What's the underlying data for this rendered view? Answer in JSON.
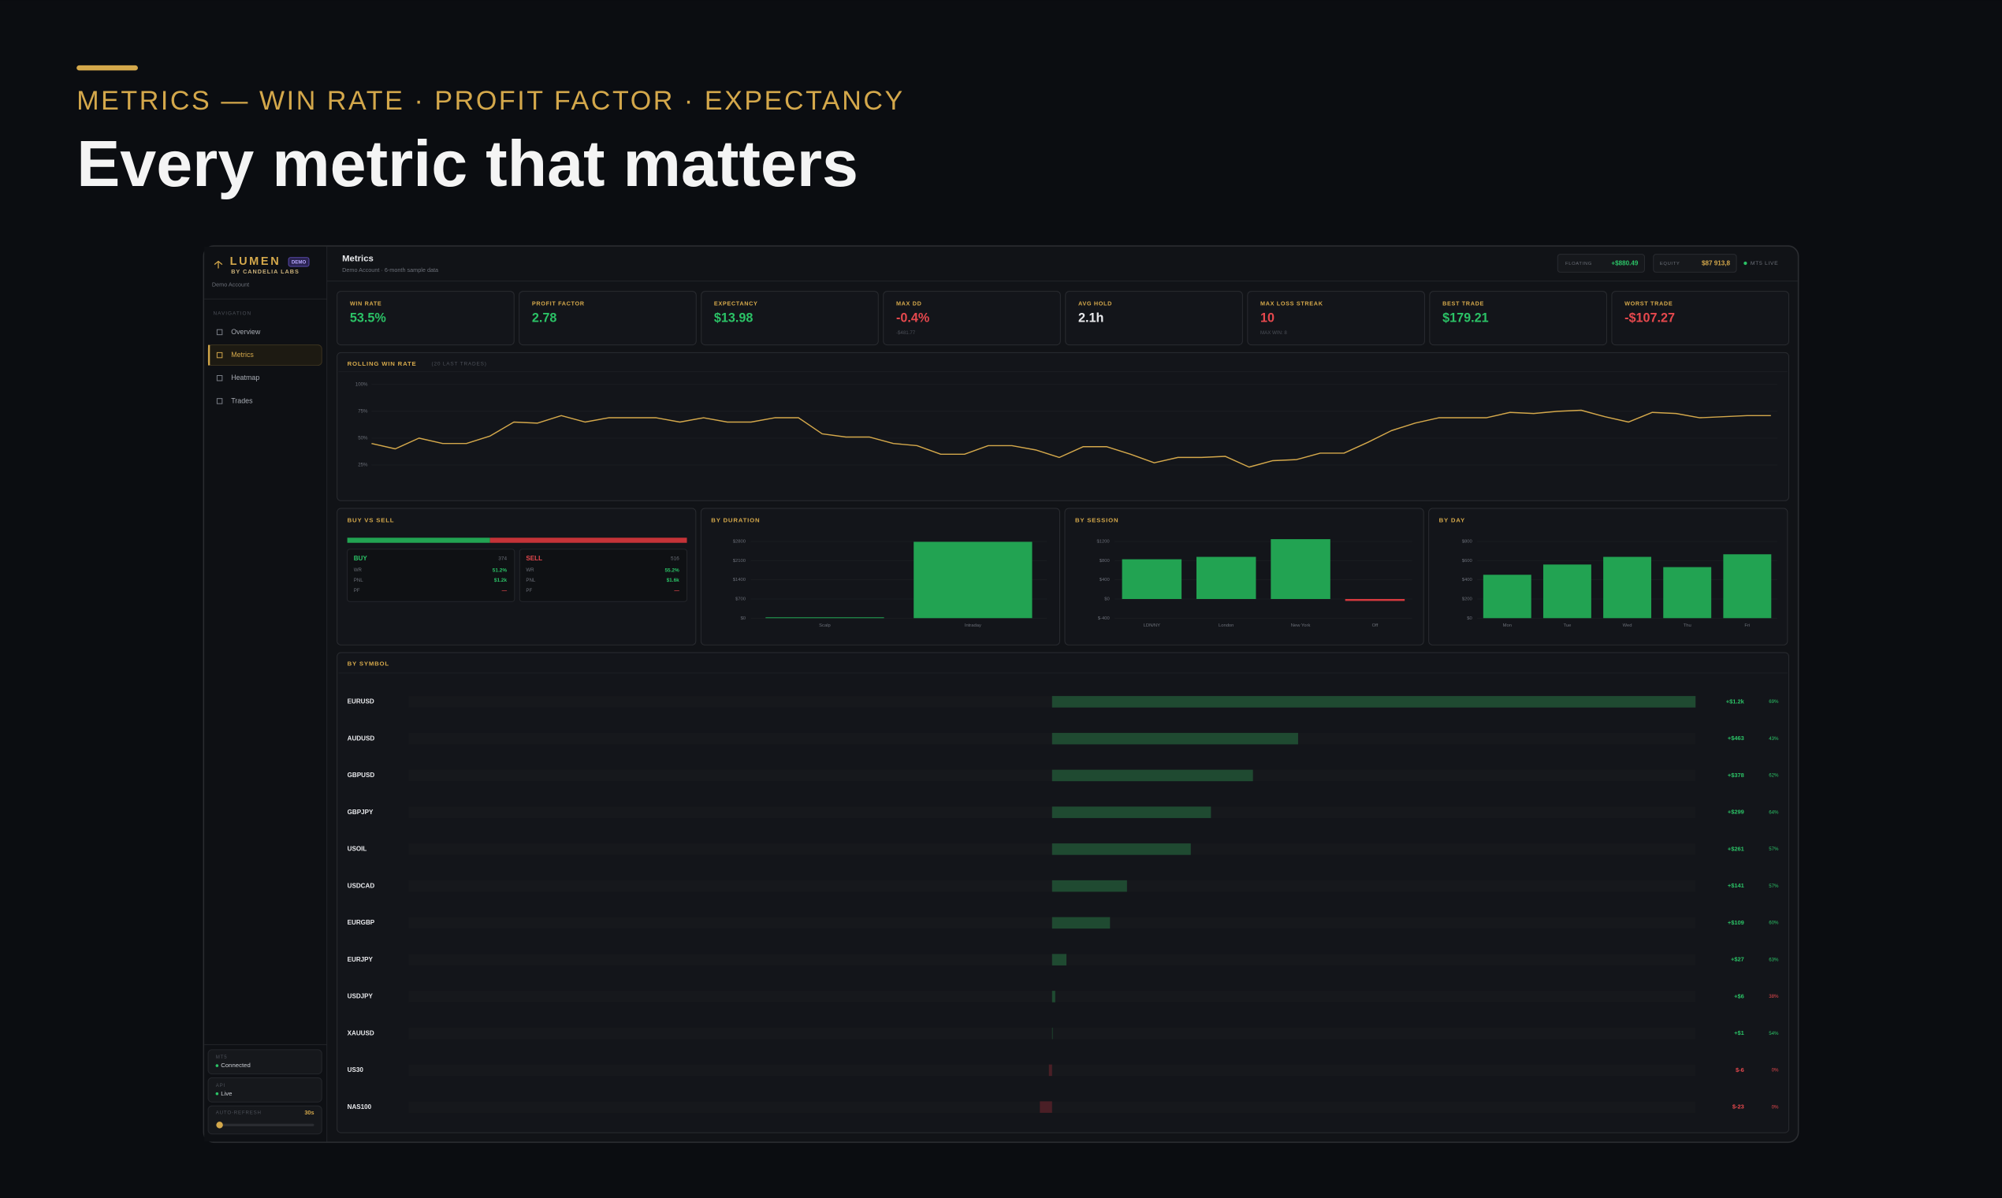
{
  "hero": {
    "eyebrow": "METRICS — WIN RATE · PROFIT FACTOR · EXPECTANCY",
    "title": "Every metric that matters"
  },
  "sidebar": {
    "brand": "LUMEN",
    "badge": "DEMO",
    "byline": "BY CANDELIA LABS",
    "account": "Demo Account",
    "nav_heading": "NAVIGATION",
    "nav": [
      {
        "label": "Overview"
      },
      {
        "label": "Metrics",
        "active": true
      },
      {
        "label": "Heatmap"
      },
      {
        "label": "Trades"
      }
    ],
    "status": [
      {
        "label": "MT5",
        "value": "Connected"
      },
      {
        "label": "API",
        "value": "Live"
      }
    ],
    "auto_refresh": {
      "label": "AUTO-REFRESH",
      "value": "30s"
    }
  },
  "header": {
    "title": "Metrics",
    "subtitle": "Demo Account · 6-month sample data",
    "floating_label": "FLOATING",
    "floating": "+$880.49",
    "equity_label": "EQUITY",
    "equity": "$87 913,8",
    "live": "MT5 LIVE"
  },
  "kpis": [
    {
      "label": "WIN RATE",
      "value": "53.5%",
      "tone": "green"
    },
    {
      "label": "PROFIT FACTOR",
      "value": "2.78",
      "tone": "green"
    },
    {
      "label": "EXPECTANCY",
      "value": "$13.98",
      "tone": "green"
    },
    {
      "label": "MAX DD",
      "value": "-0.4%",
      "tone": "red",
      "sub": "-$481.77"
    },
    {
      "label": "AVG HOLD",
      "value": "2.1h",
      "tone": "white"
    },
    {
      "label": "MAX LOSS STREAK",
      "value": "10",
      "tone": "red",
      "sub": "MAX WIN: 8"
    },
    {
      "label": "BEST TRADE",
      "value": "$179.21",
      "tone": "green"
    },
    {
      "label": "WORST TRADE",
      "value": "-$107.27",
      "tone": "red"
    }
  ],
  "rolling_win_rate": {
    "type": "line",
    "title": "ROLLING WIN RATE",
    "subtitle": "(20 LAST TRADES)",
    "color": "#d4a84b",
    "ylim": [
      0,
      100
    ],
    "yticks": [
      {
        "value": 100,
        "label": "100%"
      },
      {
        "value": 75,
        "label": "75%"
      },
      {
        "value": 50,
        "label": "50%"
      },
      {
        "value": 25,
        "label": "25%"
      }
    ],
    "values": [
      45,
      40,
      50,
      45,
      45,
      52,
      65,
      64,
      71,
      65,
      69,
      69,
      69,
      65,
      69,
      65,
      65,
      69,
      69,
      54,
      51,
      51,
      45,
      43,
      35,
      35,
      43,
      43,
      39,
      32,
      42,
      42,
      35,
      27,
      32,
      32,
      33,
      23,
      29,
      30,
      36,
      36,
      46,
      57,
      64,
      69,
      69,
      69,
      74,
      73,
      75,
      76,
      70,
      65,
      74,
      73,
      69,
      70,
      71,
      71
    ]
  },
  "buy_sell": {
    "title": "BUY VS SELL",
    "sides": [
      {
        "name": "BUY",
        "count": 374,
        "tone": "green",
        "rows": [
          {
            "label": "WR",
            "value": "51.2%",
            "tone": "green"
          },
          {
            "label": "PNL",
            "value": "$1.2k",
            "tone": "green"
          },
          {
            "label": "PF",
            "value": "—",
            "tone": "red"
          }
        ]
      },
      {
        "name": "SELL",
        "count": 516,
        "tone": "red",
        "rows": [
          {
            "label": "WR",
            "value": "55.2%",
            "tone": "green"
          },
          {
            "label": "PNL",
            "value": "$1.6k",
            "tone": "green"
          },
          {
            "label": "PF",
            "value": "—",
            "tone": "red"
          }
        ]
      }
    ]
  },
  "by_duration": {
    "type": "bar",
    "title": "BY DURATION",
    "color": "#22a352",
    "negative_color": "#d63a3f",
    "categories": [
      "Scalp",
      "Intraday"
    ],
    "values": [
      30,
      2790
    ],
    "ylim": [
      0,
      2800
    ],
    "yticks": [
      {
        "value": 2800,
        "label": "$2800"
      },
      {
        "value": 2100,
        "label": "$2100"
      },
      {
        "value": 1400,
        "label": "$1400"
      },
      {
        "value": 700,
        "label": "$700"
      },
      {
        "value": 0,
        "label": "$0"
      }
    ]
  },
  "by_session": {
    "type": "bar",
    "title": "BY SESSION",
    "color": "#22a352",
    "negative_color": "#d63a3f",
    "categories": [
      "LDN/NY",
      "London",
      "New York",
      "Off"
    ],
    "values": [
      830,
      880,
      1250,
      -40
    ],
    "ylim": [
      -400,
      1200
    ],
    "yticks": [
      {
        "value": 1200,
        "label": "$1200"
      },
      {
        "value": 800,
        "label": "$800"
      },
      {
        "value": 400,
        "label": "$400"
      },
      {
        "value": 0,
        "label": "$0"
      },
      {
        "value": -400,
        "label": "$-400"
      }
    ]
  },
  "by_day": {
    "type": "bar",
    "title": "BY DAY",
    "color": "#22a352",
    "negative_color": "#d63a3f",
    "categories": [
      "Mon",
      "Tue",
      "Wed",
      "Thu",
      "Fri"
    ],
    "values": [
      453,
      560,
      640,
      533,
      667
    ],
    "ylim": [
      0,
      800
    ],
    "yticks": [
      {
        "value": 800,
        "label": "$800"
      },
      {
        "value": 600,
        "label": "$600"
      },
      {
        "value": 400,
        "label": "$400"
      },
      {
        "value": 200,
        "label": "$200"
      },
      {
        "value": 0,
        "label": "$0"
      }
    ]
  },
  "by_symbol": {
    "type": "bar",
    "title": "BY SYMBOL",
    "color": "#1f4a31",
    "negative_color": "#4a1f26",
    "xlim": [
      -1211,
      1211
    ],
    "categories": [
      "EURUSD",
      "AUDUSD",
      "GBPUSD",
      "GBPJPY",
      "USOIL",
      "USDCAD",
      "EURGBP",
      "EURJPY",
      "USDJPY",
      "XAUUSD",
      "US30",
      "NAS100"
    ],
    "values": [
      1211,
      463,
      378,
      299,
      261,
      141,
      109,
      27,
      6,
      1,
      -6,
      -23
    ],
    "value_labels": [
      "+$1.2k",
      "+$463",
      "+$378",
      "+$299",
      "+$261",
      "+$141",
      "+$109",
      "+$27",
      "+$6",
      "+$1",
      "$-6",
      "$-23"
    ],
    "win_rates": [
      "69%",
      "43%",
      "62%",
      "64%",
      "57%",
      "57%",
      "60%",
      "63%",
      "38%",
      "54%",
      "0%",
      "0%"
    ],
    "win_rate_tones": [
      "green",
      "green",
      "green",
      "green",
      "green",
      "green",
      "green",
      "green",
      "red",
      "green",
      "red",
      "red"
    ]
  }
}
